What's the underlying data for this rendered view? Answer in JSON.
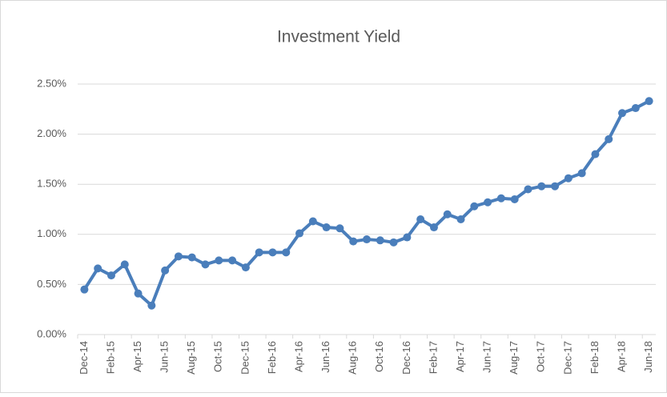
{
  "chart_data": {
    "type": "line",
    "title": "Investment Yield",
    "categories": [
      "Dec-14",
      null,
      "Feb-15",
      null,
      "Apr-15",
      null,
      "Jun-15",
      null,
      "Aug-15",
      null,
      "Oct-15",
      null,
      "Dec-15",
      null,
      "Feb-16",
      null,
      "Apr-16",
      null,
      "Jun-16",
      null,
      "Aug-16",
      null,
      "Oct-16",
      null,
      "Dec-16",
      null,
      "Feb-17",
      null,
      "Apr-17",
      null,
      "Jun-17",
      null,
      "Aug-17",
      null,
      "Oct-17",
      null,
      "Dec-17",
      null,
      "Feb-18",
      null,
      "Apr-18",
      null,
      "Jun-18"
    ],
    "series": [
      {
        "name": "Investment Yield",
        "color": "#4a7ebb",
        "values": [
          0.45,
          0.66,
          0.59,
          0.7,
          0.41,
          0.29,
          0.64,
          0.78,
          0.77,
          0.7,
          0.74,
          0.74,
          0.67,
          0.82,
          0.82,
          0.82,
          1.01,
          1.13,
          1.07,
          1.06,
          0.93,
          0.95,
          0.94,
          0.92,
          0.97,
          1.15,
          1.07,
          1.2,
          1.15,
          1.28,
          1.32,
          1.36,
          1.35,
          1.45,
          1.48,
          1.48,
          1.56,
          1.61,
          1.8,
          1.95,
          2.21,
          2.26,
          2.33
        ]
      }
    ],
    "ylim": [
      0,
      2.5
    ],
    "yticks": [
      {
        "value": 0,
        "label": "0.00%"
      },
      {
        "value": 0.5,
        "label": "0.50%"
      },
      {
        "value": 1,
        "label": "1.00%"
      },
      {
        "value": 1.5,
        "label": "1.50%"
      },
      {
        "value": 2,
        "label": "2.00%"
      },
      {
        "value": 2.5,
        "label": "2.50%"
      }
    ],
    "grid": true
  }
}
